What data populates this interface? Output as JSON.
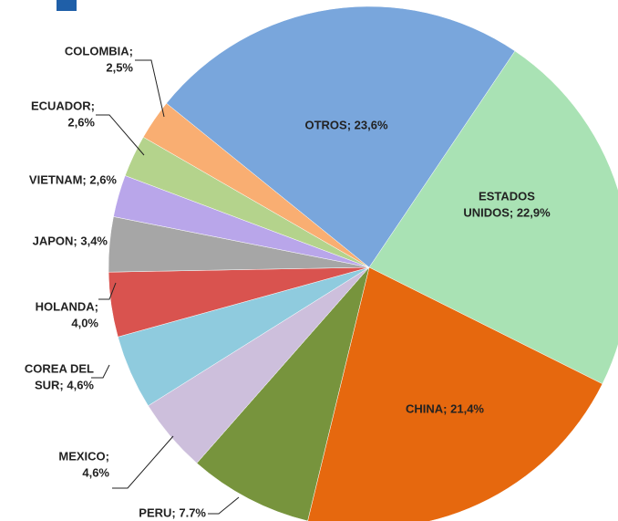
{
  "chart_data": {
    "type": "pie",
    "categories": [
      [
        "ESTADOS",
        "UNIDOS;  22,9%"
      ],
      [
        "CHINA;  21,4%"
      ],
      [
        "PERU; 7.7%"
      ],
      [
        "MEXICO;",
        "4,6%"
      ],
      [
        "COREA DEL",
        "SUR; 4,6%"
      ],
      [
        "HOLANDA;",
        "4,0%"
      ],
      [
        "JAPON; 3,4%"
      ],
      [
        "VIETNAM; 2,6%"
      ],
      [
        "ECUADOR;",
        "2,6%"
      ],
      [
        "COLOMBIA;",
        "2,5%"
      ],
      [
        "OTROS; 23,6%"
      ]
    ],
    "values": [
      22.9,
      21.4,
      7.7,
      4.6,
      4.6,
      4.0,
      3.4,
      2.6,
      2.6,
      2.5,
      23.6
    ],
    "colors": [
      "#a9e2b4",
      "#e6680e",
      "#77943d",
      "#cdbfdc",
      "#8fcbde",
      "#d9534f",
      "#a6a6a6",
      "#b9a6ea",
      "#b4d38c",
      "#f9ae72",
      "#79a6dc"
    ]
  }
}
